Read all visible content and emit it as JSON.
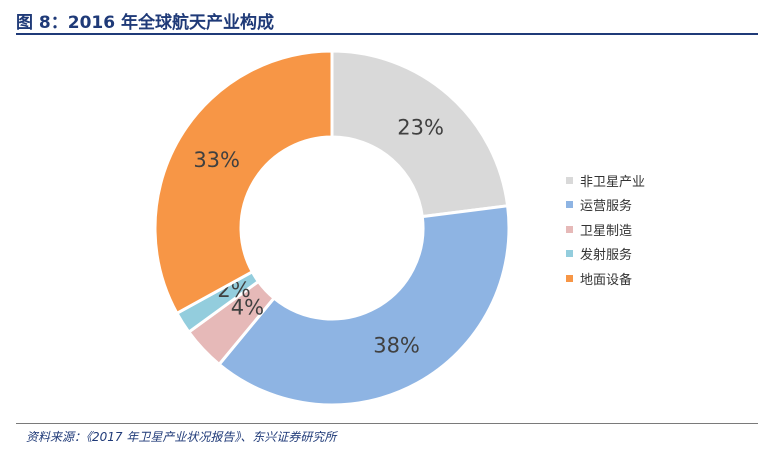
{
  "header": {
    "title": "图 8：2016 年全球航天产业构成"
  },
  "footer": {
    "source": "资料来源：《2017 年卫星产业状况报告》、东兴证券研究所"
  },
  "chart_data": {
    "type": "pie",
    "donut": true,
    "legend_position": "right",
    "categories": [
      "非卫星产业",
      "运营服务",
      "卫星制造",
      "发射服务",
      "地面设备"
    ],
    "values": [
      23,
      38,
      4,
      2,
      33
    ],
    "labels": [
      "23%",
      "38%",
      "4%",
      "2%",
      "33%"
    ],
    "colors": [
      "#d9d9d9",
      "#8eb4e3",
      "#e6b9b8",
      "#93cddd",
      "#f79646"
    ],
    "start_angle_deg": 0,
    "direction": "clockwise"
  }
}
